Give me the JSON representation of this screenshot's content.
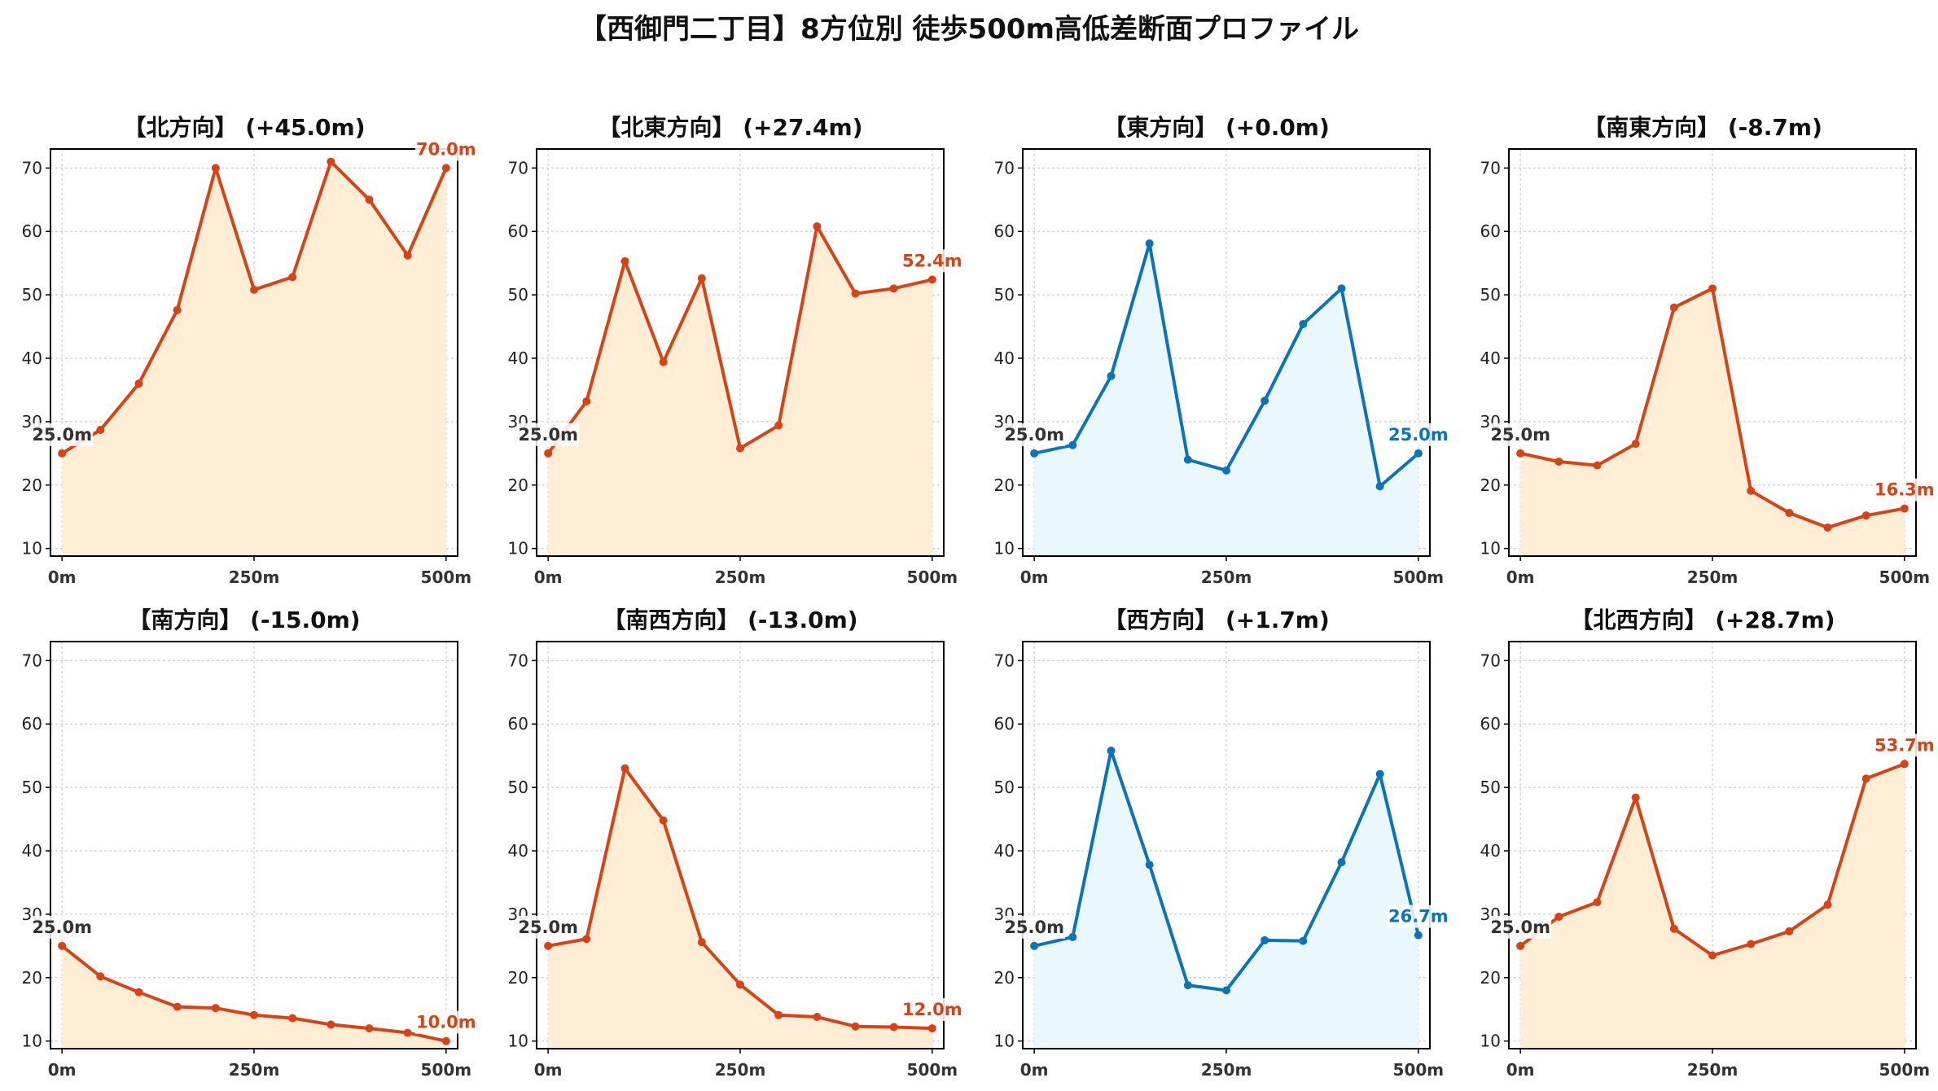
{
  "figure": {
    "title": "【西御門二丁目】8方位別 徒歩500m高低差断面プロファイル"
  },
  "colors": {
    "up_line": "#d84315",
    "up_fill": "#ffedd5",
    "flat_line": "#0a74b8",
    "flat_fill": "#eaf7fd",
    "start_label": "#333333",
    "grid": "#cccccc"
  },
  "chart_data": [
    {
      "type": "area",
      "title": "【北方向】 (+45.0m)",
      "style": "orange",
      "x": [
        0,
        50,
        100,
        150,
        200,
        250,
        300,
        350,
        400,
        450,
        500
      ],
      "y": [
        25.0,
        28.7,
        36.0,
        47.6,
        70.0,
        50.8,
        52.8,
        71.0,
        65.0,
        56.2,
        70.0
      ],
      "xticks": [
        0,
        250,
        500
      ],
      "xtick_labels": [
        "0m",
        "250m",
        "500m"
      ],
      "yticks": [
        10,
        20,
        30,
        40,
        50,
        60,
        70
      ],
      "xlim": [
        -15,
        515
      ],
      "ylim": [
        8.8,
        73
      ],
      "start_label": "25.0m",
      "end_label": "70.0m",
      "grid": true
    },
    {
      "type": "area",
      "title": "【北東方向】 (+27.4m)",
      "style": "orange",
      "x": [
        0,
        50,
        100,
        150,
        200,
        250,
        300,
        350,
        400,
        450,
        500
      ],
      "y": [
        25.0,
        33.2,
        55.3,
        39.4,
        52.6,
        25.8,
        29.4,
        60.8,
        50.2,
        51.0,
        52.4
      ],
      "xticks": [
        0,
        250,
        500
      ],
      "xtick_labels": [
        "0m",
        "250m",
        "500m"
      ],
      "yticks": [
        10,
        20,
        30,
        40,
        50,
        60,
        70
      ],
      "xlim": [
        -15,
        515
      ],
      "ylim": [
        8.8,
        73
      ],
      "start_label": "25.0m",
      "end_label": "52.4m",
      "grid": true
    },
    {
      "type": "area",
      "title": "【東方向】 (+0.0m)",
      "style": "blue",
      "x": [
        0,
        50,
        100,
        150,
        200,
        250,
        300,
        350,
        400,
        450,
        500
      ],
      "y": [
        25.0,
        26.3,
        37.2,
        58.1,
        24.0,
        22.3,
        33.3,
        45.4,
        51.0,
        19.8,
        25.0
      ],
      "xticks": [
        0,
        250,
        500
      ],
      "xtick_labels": [
        "0m",
        "250m",
        "500m"
      ],
      "yticks": [
        10,
        20,
        30,
        40,
        50,
        60,
        70
      ],
      "xlim": [
        -15,
        515
      ],
      "ylim": [
        8.8,
        73
      ],
      "start_label": "25.0m",
      "end_label": "25.0m",
      "grid": true
    },
    {
      "type": "area",
      "title": "【南東方向】 (-8.7m)",
      "style": "orange",
      "x": [
        0,
        50,
        100,
        150,
        200,
        250,
        300,
        350,
        400,
        450,
        500
      ],
      "y": [
        25.0,
        23.7,
        23.1,
        26.5,
        48.0,
        51.0,
        19.1,
        15.6,
        13.3,
        15.2,
        16.3
      ],
      "xticks": [
        0,
        250,
        500
      ],
      "xtick_labels": [
        "0m",
        "250m",
        "500m"
      ],
      "yticks": [
        10,
        20,
        30,
        40,
        50,
        60,
        70
      ],
      "xlim": [
        -15,
        515
      ],
      "ylim": [
        8.8,
        73
      ],
      "start_label": "25.0m",
      "end_label": "16.3m",
      "grid": true
    },
    {
      "type": "area",
      "title": "【南方向】 (-15.0m)",
      "style": "orange",
      "x": [
        0,
        50,
        100,
        150,
        200,
        250,
        300,
        350,
        400,
        450,
        500
      ],
      "y": [
        25.0,
        20.2,
        17.7,
        15.4,
        15.2,
        14.1,
        13.6,
        12.6,
        12.0,
        11.3,
        10.0
      ],
      "xticks": [
        0,
        250,
        500
      ],
      "xtick_labels": [
        "0m",
        "250m",
        "500m"
      ],
      "yticks": [
        10,
        20,
        30,
        40,
        50,
        60,
        70
      ],
      "xlim": [
        -15,
        515
      ],
      "ylim": [
        8.8,
        73
      ],
      "start_label": "25.0m",
      "end_label": "10.0m",
      "grid": true
    },
    {
      "type": "area",
      "title": "【南西方向】 (-13.0m)",
      "style": "orange",
      "x": [
        0,
        50,
        100,
        150,
        200,
        250,
        300,
        350,
        400,
        450,
        500
      ],
      "y": [
        25.0,
        26.1,
        53.0,
        44.8,
        25.6,
        18.9,
        14.1,
        13.8,
        12.3,
        12.2,
        12.0
      ],
      "xticks": [
        0,
        250,
        500
      ],
      "xtick_labels": [
        "0m",
        "250m",
        "500m"
      ],
      "yticks": [
        10,
        20,
        30,
        40,
        50,
        60,
        70
      ],
      "xlim": [
        -15,
        515
      ],
      "ylim": [
        8.8,
        73
      ],
      "start_label": "25.0m",
      "end_label": "12.0m",
      "grid": true
    },
    {
      "type": "area",
      "title": "【西方向】 (+1.7m)",
      "style": "blue",
      "x": [
        0,
        50,
        100,
        150,
        200,
        250,
        300,
        350,
        400,
        450,
        500
      ],
      "y": [
        25.0,
        26.4,
        55.8,
        37.8,
        18.8,
        18.0,
        25.9,
        25.8,
        38.2,
        52.1,
        26.7
      ],
      "xticks": [
        0,
        250,
        500
      ],
      "xtick_labels": [
        "0m",
        "250m",
        "500m"
      ],
      "yticks": [
        10,
        20,
        30,
        40,
        50,
        60,
        70
      ],
      "xlim": [
        -15,
        515
      ],
      "ylim": [
        8.8,
        73
      ],
      "start_label": "25.0m",
      "end_label": "26.7m",
      "grid": true
    },
    {
      "type": "area",
      "title": "【北西方向】 (+28.7m)",
      "style": "orange",
      "x": [
        0,
        50,
        100,
        150,
        200,
        250,
        300,
        350,
        400,
        450,
        500
      ],
      "y": [
        25.0,
        29.6,
        31.9,
        48.4,
        27.7,
        23.5,
        25.3,
        27.3,
        31.5,
        51.4,
        53.7
      ],
      "xticks": [
        0,
        250,
        500
      ],
      "xtick_labels": [
        "0m",
        "250m",
        "500m"
      ],
      "yticks": [
        10,
        20,
        30,
        40,
        50,
        60,
        70
      ],
      "xlim": [
        -15,
        515
      ],
      "ylim": [
        8.8,
        73
      ],
      "start_label": "25.0m",
      "end_label": "53.7m",
      "grid": true
    }
  ]
}
